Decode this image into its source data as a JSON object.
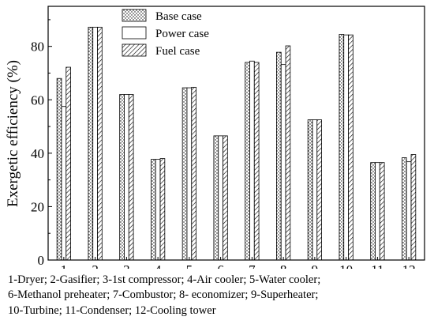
{
  "chart_data": {
    "type": "bar",
    "categories": [
      "1",
      "2",
      "3",
      "4",
      "5",
      "6",
      "7",
      "8",
      "9",
      "10",
      "11",
      "12"
    ],
    "series": [
      {
        "name": "Base case",
        "pattern": "dots",
        "values": [
          68,
          87.2,
          62,
          37.7,
          64.5,
          46.5,
          74,
          77.8,
          52.5,
          84.5,
          36.5,
          38.3
        ]
      },
      {
        "name": "Power case",
        "pattern": "none",
        "values": [
          57.5,
          87.2,
          62,
          37.7,
          64.5,
          46.5,
          74.5,
          73.2,
          52.5,
          84.3,
          36.5,
          36.8
        ]
      },
      {
        "name": "Fuel case",
        "pattern": "hatched",
        "values": [
          72.2,
          87.2,
          62,
          38,
          64.7,
          46.5,
          74,
          80.2,
          52.5,
          84.3,
          36.5,
          39.5
        ]
      }
    ],
    "title": "",
    "xlabel": "",
    "ylabel": "Exergetic efficiency (%)",
    "ylim": [
      0,
      95
    ],
    "yticks": [
      "0",
      "20",
      "40",
      "60",
      "80"
    ],
    "yticks_values": [
      0,
      20,
      40,
      60,
      80
    ],
    "grid": false,
    "legend_position": "top-center"
  },
  "caption": {
    "line1": "1-Dryer; 2-Gasifier; 3-1st compressor; 4-Air cooler; 5-Water cooler;",
    "line2": "6-Methanol preheater; 7-Combustor; 8- economizer; 9-Superheater;",
    "line3": "10-Turbine; 11-Condenser; 12-Cooling tower"
  }
}
